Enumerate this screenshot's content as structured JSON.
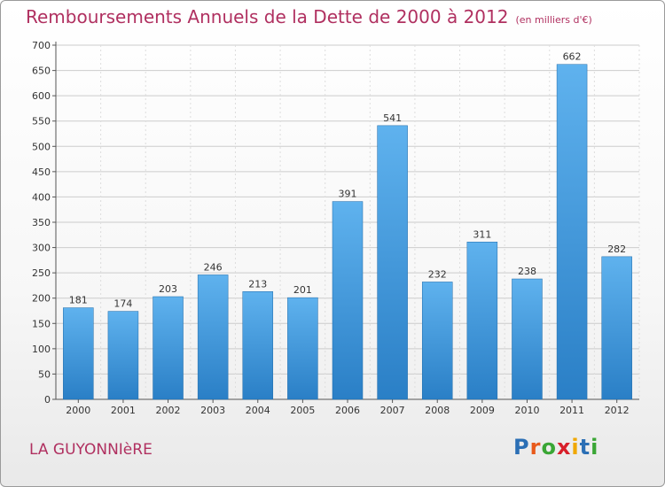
{
  "chart_data": {
    "type": "bar",
    "title": "Remboursements Annuels de la Dette de 2000 à 2012",
    "subtitle": "(en milliers d'€)",
    "categories": [
      "2000",
      "2001",
      "2002",
      "2003",
      "2004",
      "2005",
      "2006",
      "2007",
      "2008",
      "2009",
      "2010",
      "2011",
      "2012"
    ],
    "values": [
      181,
      174,
      203,
      246,
      213,
      201,
      391,
      541,
      232,
      311,
      238,
      662,
      282
    ],
    "xlabel": "",
    "ylabel": "",
    "ylim": [
      0,
      700
    ],
    "yticks": [
      0,
      50,
      100,
      150,
      200,
      250,
      300,
      350,
      400,
      450,
      500,
      550,
      600,
      650,
      700
    ],
    "grid": true,
    "bar_color": "#4aa0e0"
  },
  "footer": {
    "location": "LA GUYONNIèRE"
  },
  "logo": {
    "text": "Proxiti",
    "letter_colors": [
      "#2b6fb5",
      "#e85a1b",
      "#3aa635",
      "#d81f2a",
      "#f0a800",
      "#2b6fb5",
      "#3aa635"
    ]
  }
}
